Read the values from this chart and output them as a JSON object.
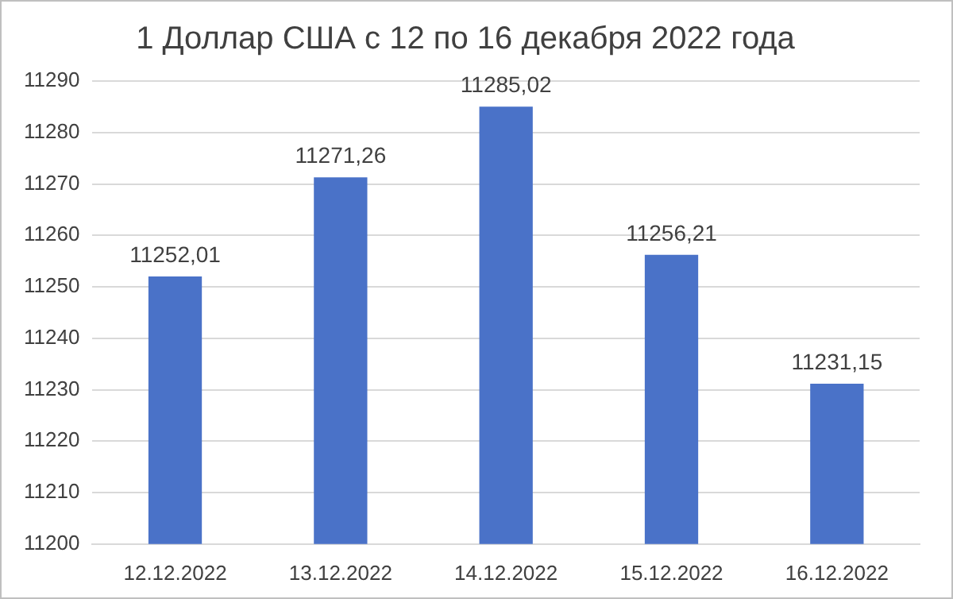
{
  "chart_data": {
    "type": "bar",
    "title": "1 Доллар США с 12 по 16 декабря 2022 года",
    "categories": [
      "12.12.2022",
      "13.12.2022",
      "14.12.2022",
      "15.12.2022",
      "16.12.2022"
    ],
    "values": [
      11252.01,
      11271.26,
      11285.02,
      11256.21,
      11231.15
    ],
    "value_labels": [
      "11252,01",
      "11271,26",
      "11285,02",
      "11256,21",
      "11231,15"
    ],
    "color": "#4a72c8",
    "ylim": [
      11200,
      11290
    ],
    "yticks": [
      11200,
      11210,
      11220,
      11230,
      11240,
      11250,
      11260,
      11270,
      11280,
      11290
    ],
    "grid": "y"
  }
}
